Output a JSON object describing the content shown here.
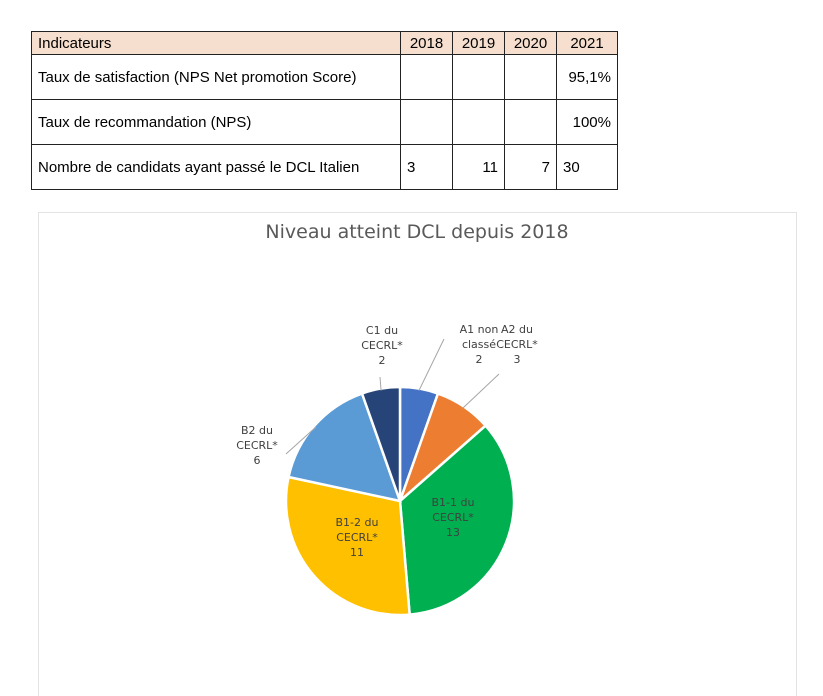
{
  "table": {
    "header": {
      "label": "Indicateurs",
      "years": [
        "2018",
        "2019",
        "2020",
        "2021"
      ]
    },
    "rows": [
      {
        "label": "Taux de satisfaction (NPS Net promotion Score)",
        "values": [
          "",
          "",
          "",
          "95,1%"
        ]
      },
      {
        "label": "Taux de recommandation (NPS)",
        "values": [
          "",
          "",
          "",
          "100%"
        ]
      },
      {
        "label": "Nombre de candidats ayant passé le DCL Italien",
        "values": [
          "3",
          "11",
          "7",
          "30"
        ]
      }
    ]
  },
  "chart_data": {
    "type": "pie",
    "title": "Niveau atteint DCL depuis 2018",
    "slices": [
      {
        "label": [
          "A1 non",
          "classé"
        ],
        "value": 2,
        "color": "#4472c4"
      },
      {
        "label": [
          "A2 du",
          "CECRL*"
        ],
        "value": 3,
        "color": "#ed7d31"
      },
      {
        "label": [
          "B1-1 du",
          "CECRL*"
        ],
        "value": 13,
        "color": "#00b050"
      },
      {
        "label": [
          "B1-2 du",
          "CECRL*"
        ],
        "value": 11,
        "color": "#ffc000"
      },
      {
        "label": [
          "B2 du",
          "CECRL*"
        ],
        "value": 6,
        "color": "#5b9bd5"
      },
      {
        "label": [
          "C1 du",
          "CECRL*"
        ],
        "value": 2,
        "color": "#264478"
      }
    ]
  }
}
